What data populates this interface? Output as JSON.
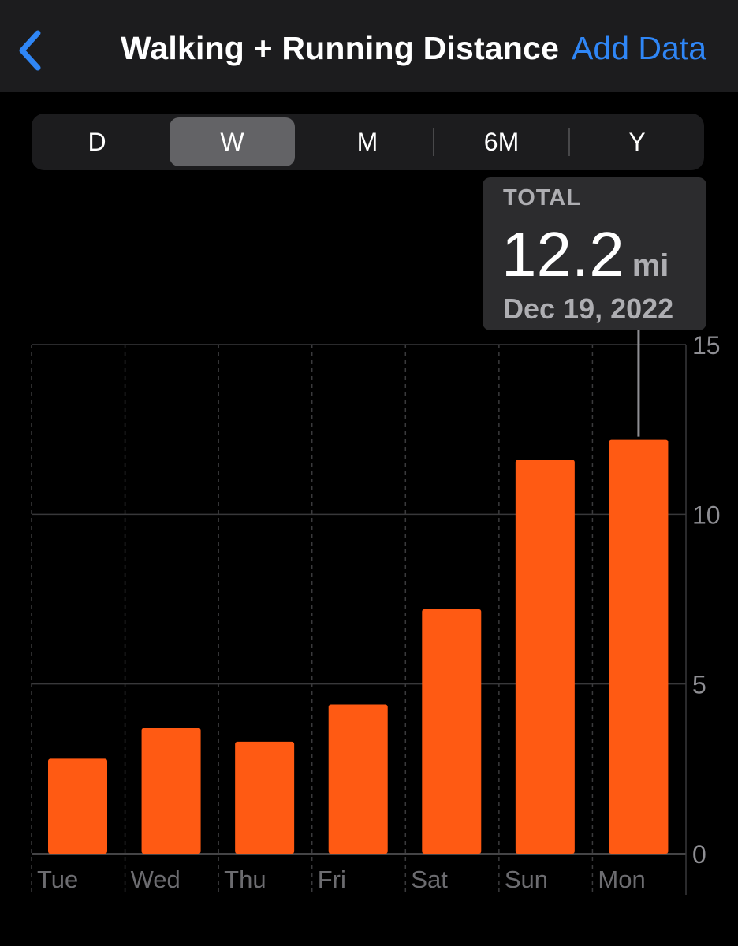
{
  "nav": {
    "title": "Walking + Running Distance",
    "add_data_label": "Add Data"
  },
  "segment": {
    "items": [
      {
        "label": "D",
        "active": false
      },
      {
        "label": "W",
        "active": true
      },
      {
        "label": "M",
        "active": false
      },
      {
        "label": "6M",
        "active": false
      },
      {
        "label": "Y",
        "active": false
      }
    ]
  },
  "tooltip": {
    "label": "TOTAL",
    "value": "12.2",
    "unit": "mi",
    "date": "Dec 19, 2022"
  },
  "colors": {
    "bar": "#ff5a13",
    "accent": "#2f86f6",
    "background": "#000000"
  },
  "chart_data": {
    "type": "bar",
    "categories": [
      "Tue",
      "Wed",
      "Thu",
      "Fri",
      "Sat",
      "Sun",
      "Mon"
    ],
    "values": [
      2.8,
      3.7,
      3.3,
      4.4,
      7.2,
      11.6,
      12.2
    ],
    "ylim": [
      0,
      15
    ],
    "yticks": [
      0,
      5,
      10,
      15
    ],
    "highlight_category": "Mon",
    "grid": true
  }
}
